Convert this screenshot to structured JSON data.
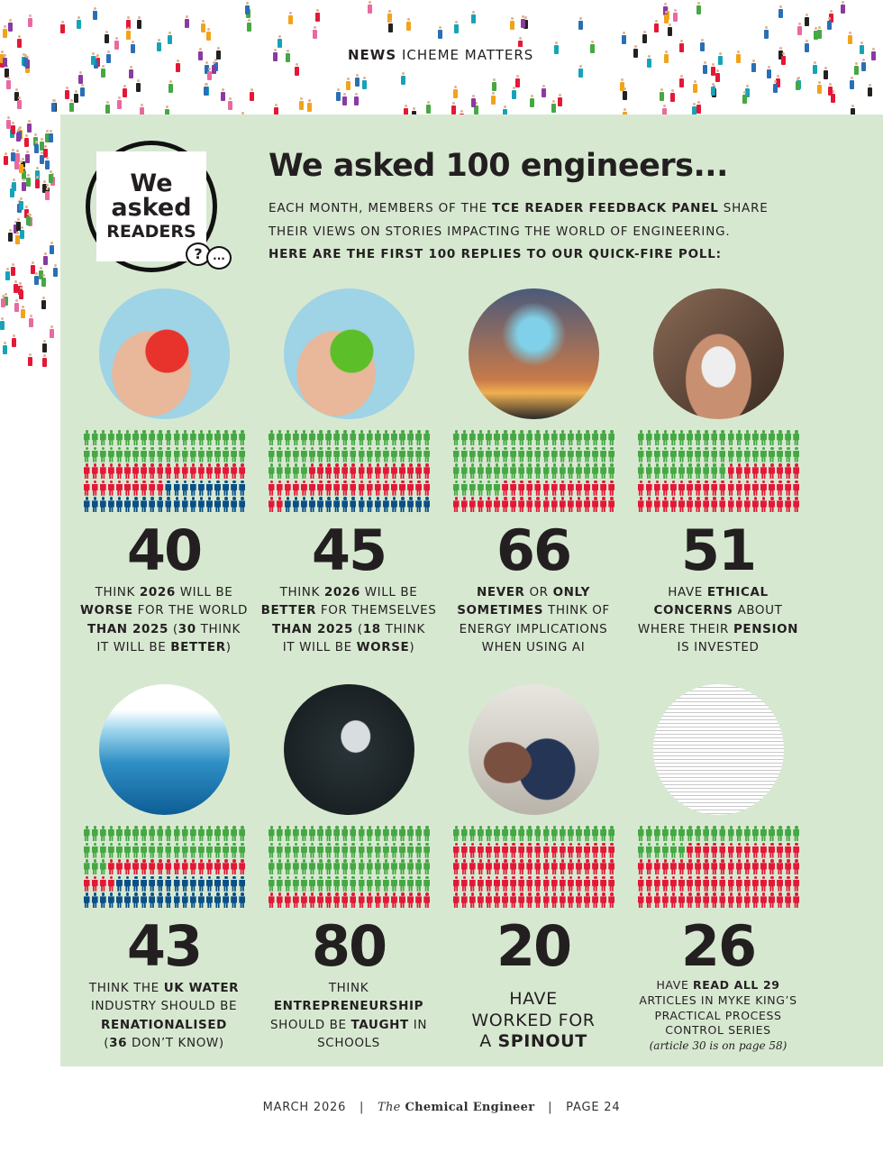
{
  "header": {
    "section": "NEWS",
    "subsection": "ICHEME MATTERS"
  },
  "badge": {
    "line1": "We",
    "line2": "asked",
    "line3": "READERS",
    "bubble_q": "?",
    "bubble_dots": "..."
  },
  "title": "We asked 100 engineers...",
  "intro": {
    "line1_pre": "EACH MONTH, MEMBERS OF THE ",
    "line1_bold": "TCE READER FEEDBACK PANEL",
    "line1_post": " SHARE",
    "line2": "THEIR VIEWS ON STORIES IMPACTING THE WORLD OF ENGINEERING.",
    "line3": "HERE ARE THE FIRST 100 REPLIES TO OUR QUICK-FIRE POLL:"
  },
  "colors": {
    "green": "#45a843",
    "red": "#e31837",
    "blue": "#0a4f86",
    "panel": "#d7e8d1"
  },
  "polls": [
    {
      "number": "40",
      "photo": "sad-face-in-hand",
      "counts": {
        "green": 40,
        "red": 30,
        "blue": 30
      },
      "style": "normal",
      "lines": [
        [
          {
            "t": "THINK "
          },
          {
            "t": "2026",
            "b": 1
          },
          {
            "t": " WILL BE"
          }
        ],
        [
          {
            "t": "WORSE",
            "b": 1
          },
          {
            "t": " FOR THE WORLD"
          }
        ],
        [
          {
            "t": "THAN 2025",
            "b": 1
          },
          {
            "t": " ("
          },
          {
            "t": "30",
            "b": 1
          },
          {
            "t": " THINK"
          }
        ],
        [
          {
            "t": "IT WILL BE "
          },
          {
            "t": "BETTER",
            "b": 1
          },
          {
            "t": ")"
          }
        ]
      ]
    },
    {
      "number": "45",
      "photo": "happy-face-in-hand",
      "counts": {
        "green": 45,
        "red": 37,
        "blue": 18
      },
      "style": "normal",
      "lines": [
        [
          {
            "t": "THINK "
          },
          {
            "t": "2026",
            "b": 1
          },
          {
            "t": " WILL BE"
          }
        ],
        [
          {
            "t": "BETTER",
            "b": 1
          },
          {
            "t": " FOR THEMSELVES"
          }
        ],
        [
          {
            "t": "THAN 2025",
            "b": 1
          },
          {
            "t": " ("
          },
          {
            "t": "18",
            "b": 1
          },
          {
            "t": " THINK"
          }
        ],
        [
          {
            "t": "IT WILL BE "
          },
          {
            "t": "WORSE",
            "b": 1
          },
          {
            "t": ")"
          }
        ]
      ]
    },
    {
      "number": "66",
      "photo": "ai-power-pylons",
      "counts": {
        "green": 66,
        "red": 34,
        "blue": 0
      },
      "style": "normal",
      "lines": [
        [
          {
            "t": "NEVER",
            "b": 1
          },
          {
            "t": " OR "
          },
          {
            "t": "ONLY",
            "b": 1
          }
        ],
        [
          {
            "t": "SOMETIMES",
            "b": 1
          },
          {
            "t": " THINK OF"
          }
        ],
        [
          {
            "t": "ENERGY IMPLICATIONS"
          }
        ],
        [
          {
            "t": "WHEN USING AI"
          }
        ]
      ]
    },
    {
      "number": "51",
      "photo": "piggy-bank",
      "counts": {
        "green": 51,
        "red": 49,
        "blue": 0
      },
      "style": "normal",
      "lines": [
        [
          {
            "t": "HAVE "
          },
          {
            "t": "ETHICAL",
            "b": 1
          }
        ],
        [
          {
            "t": "CONCERNS",
            "b": 1
          },
          {
            "t": " ABOUT"
          }
        ],
        [
          {
            "t": "WHERE THEIR "
          },
          {
            "t": "PENSION",
            "b": 1
          }
        ],
        [
          {
            "t": "IS INVESTED"
          }
        ]
      ]
    },
    {
      "number": "43",
      "photo": "water-surface",
      "counts": {
        "green": 43,
        "red": 21,
        "blue": 36
      },
      "style": "normal",
      "lines": [
        [
          {
            "t": "THINK THE "
          },
          {
            "t": "UK WATER",
            "b": 1
          }
        ],
        [
          {
            "t": "INDUSTRY SHOULD BE"
          }
        ],
        [
          {
            "t": "RENATIONALISED",
            "b": 1
          }
        ],
        [
          {
            "t": "("
          },
          {
            "t": "36",
            "b": 1
          },
          {
            "t": " DON’T KNOW)"
          }
        ]
      ]
    },
    {
      "number": "80",
      "photo": "rocket",
      "counts": {
        "green": 80,
        "red": 20,
        "blue": 0
      },
      "style": "normal",
      "lines": [
        [
          {
            "t": "THINK"
          }
        ],
        [
          {
            "t": "ENTREPRENEURSHIP",
            "b": 1
          }
        ],
        [
          {
            "t": "SHOULD BE "
          },
          {
            "t": "TAUGHT",
            "b": 1
          },
          {
            "t": " IN"
          }
        ],
        [
          {
            "t": "SCHOOLS"
          }
        ]
      ]
    },
    {
      "number": "20",
      "photo": "business-handshake",
      "counts": {
        "green": 20,
        "red": 80,
        "blue": 0
      },
      "style": "big",
      "lines": [
        [
          {
            "t": "HAVE"
          }
        ],
        [
          {
            "t": "WORKED FOR"
          }
        ],
        [
          {
            "t": "A "
          },
          {
            "t": "SPINOUT",
            "b": 1
          }
        ]
      ]
    },
    {
      "number": "26",
      "photo": "pid-monitoring-magazine",
      "counts": {
        "green": 26,
        "red": 74,
        "blue": 0
      },
      "style": "small",
      "lines": [
        [
          {
            "t": "HAVE "
          },
          {
            "t": "READ ALL 29",
            "b": 1
          }
        ],
        [
          {
            "t": "ARTICLES IN MYKE KING’S"
          }
        ],
        [
          {
            "t": "PRACTICAL PROCESS"
          }
        ],
        [
          {
            "t": "CONTROL SERIES"
          }
        ],
        [
          {
            "t": "(article 30 is on page 58)",
            "i": 1
          }
        ]
      ]
    }
  ],
  "footer": {
    "date": "MARCH 2026",
    "sep": "|",
    "mag_the": "The",
    "mag_name": "Chemical Engineer",
    "page": "PAGE 24"
  }
}
